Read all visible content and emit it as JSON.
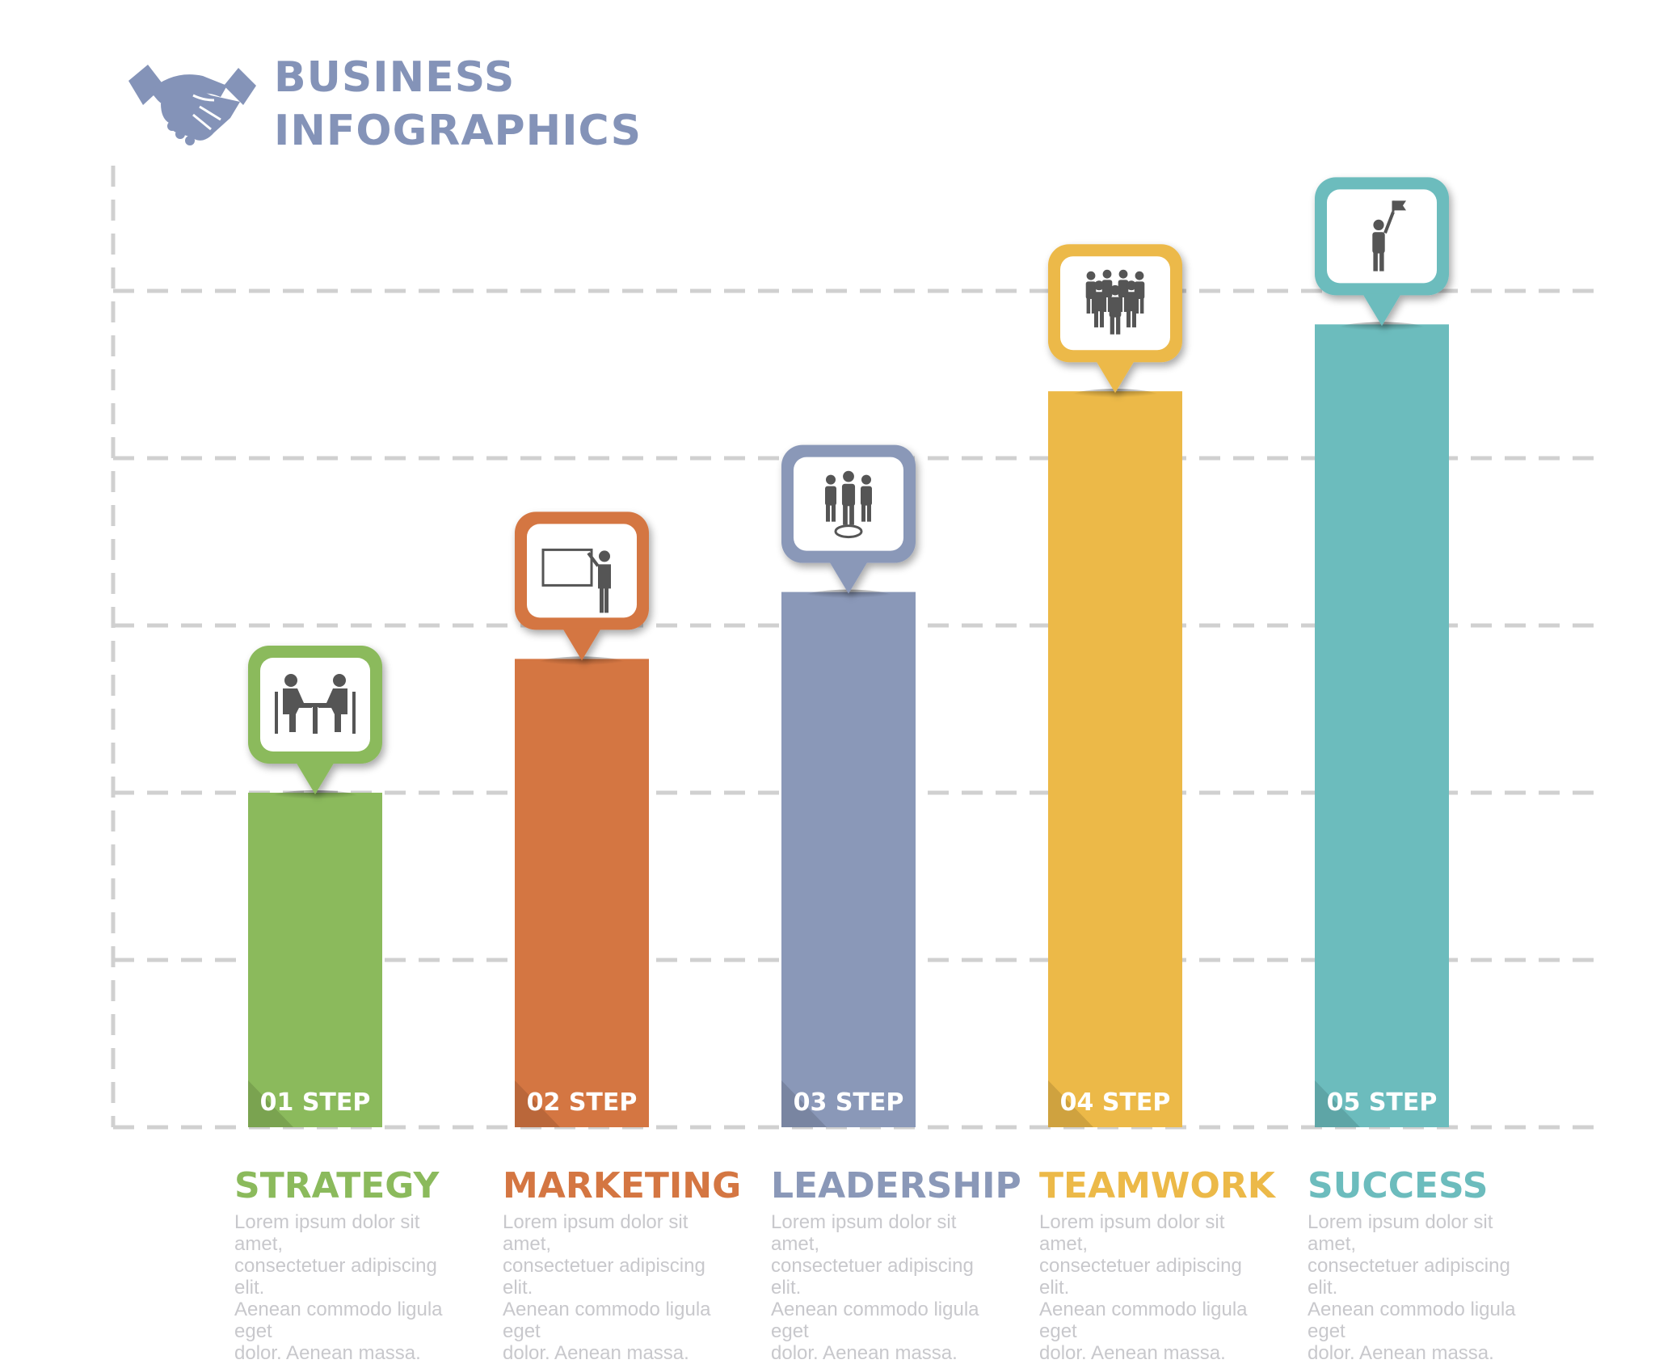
{
  "header": {
    "title_line_1": "BUSINESS",
    "title_line_2": "INFOGRAPHICS",
    "title_color": "#8493b8",
    "icon": "handshake-icon"
  },
  "chart_data": {
    "type": "bar",
    "title": "BUSINESS INFOGRAPHICS",
    "categories": [
      "01 STEP",
      "02 STEP",
      "03 STEP",
      "04 STEP",
      "05 STEP"
    ],
    "values": [
      2,
      2.8,
      3.2,
      4.4,
      4.8
    ],
    "ylim": [
      0,
      5.8
    ],
    "grid": true,
    "grid_style": "dashed",
    "axis_style": "dashed",
    "colors": [
      "#8bba5c",
      "#d47642",
      "#8a98b8",
      "#ecb948",
      "#6cbcbd"
    ],
    "icons": [
      "meeting-icon",
      "presentation-icon",
      "leader-icon",
      "team-icon",
      "success-flag-icon"
    ],
    "bar_names": [
      "strategy",
      "marketing",
      "leadership",
      "teamwork",
      "success"
    ]
  },
  "categories": [
    {
      "title": "STRATEGY",
      "color": "#8bba5c",
      "desc": [
        "Lorem ipsum dolor sit amet,",
        "consectetuer adipiscing elit.",
        "Aenean commodo ligula eget",
        "dolor. Aenean massa."
      ]
    },
    {
      "title": "MARKETING",
      "color": "#d47642",
      "desc": [
        "Lorem ipsum dolor sit amet,",
        "consectetuer adipiscing elit.",
        "Aenean commodo ligula eget",
        "dolor. Aenean massa."
      ]
    },
    {
      "title": "LEADERSHIP",
      "color": "#8a98b8",
      "desc": [
        "Lorem ipsum dolor sit amet,",
        "consectetuer adipiscing elit.",
        "Aenean commodo ligula eget",
        "dolor. Aenean massa."
      ]
    },
    {
      "title": "TEAMWORK",
      "color": "#ecb948",
      "desc": [
        "Lorem ipsum dolor sit amet,",
        "consectetuer adipiscing elit.",
        "Aenean commodo ligula eget",
        "dolor. Aenean massa."
      ]
    },
    {
      "title": "SUCCESS",
      "color": "#6cbcbd",
      "desc": [
        "Lorem ipsum dolor sit amet,",
        "consectetuer adipiscing elit.",
        "Aenean commodo ligula eget",
        "dolor. Aenean massa."
      ]
    }
  ]
}
